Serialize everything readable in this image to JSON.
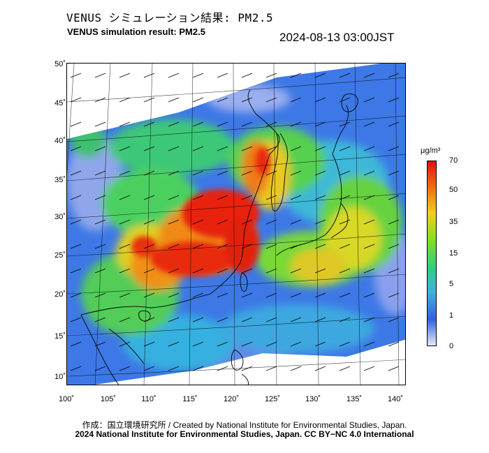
{
  "header": {
    "title_jp": "VENUS シミュレーション結果: PM2.5",
    "title_en": "VENUS simulation result: PM2.5",
    "timestamp": "2024-08-13 03:00JST"
  },
  "axes": {
    "lat_labels": [
      "50˚",
      "45˚",
      "40˚",
      "35˚",
      "30˚",
      "25˚",
      "20˚",
      "15˚",
      "10˚"
    ],
    "lon_labels": [
      "100˚",
      "105˚",
      "110˚",
      "115˚",
      "120˚",
      "125˚",
      "130˚",
      "135˚",
      "140˚"
    ]
  },
  "legend": {
    "unit": "μg/m³",
    "ticks": [
      "70",
      "50",
      "35",
      "15",
      "5",
      "1",
      "0"
    ],
    "colors": [
      "#e8e8f8",
      "#3060e0",
      "#40b0e0",
      "#30d080",
      "#80e020",
      "#f0d020",
      "#f07010",
      "#e01010"
    ]
  },
  "footer": {
    "credit_line": "作成：国立環境研究所 / Created by National Institute for Environmental Studies, Japan.",
    "copyright_line": "2024 National Institute for Environmental Studies, Japan. CC BY−NC 4.0 International"
  }
}
